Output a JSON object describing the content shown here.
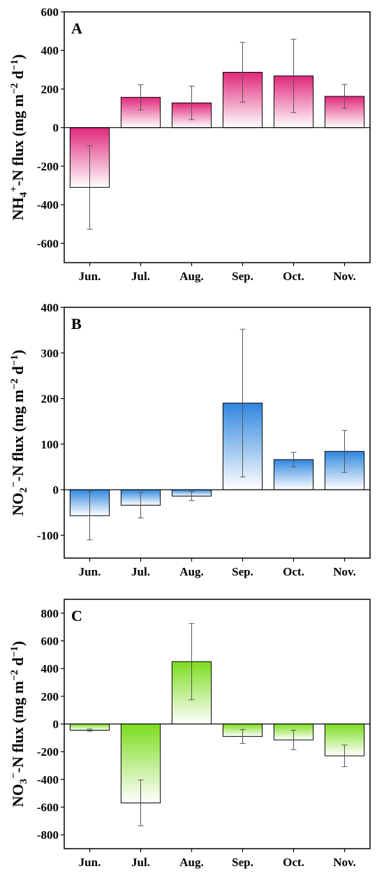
{
  "chart_data": [
    {
      "type": "bar",
      "panel_letter": "A",
      "categories": [
        "Jun.",
        "Jul.",
        "Aug.",
        "Sep.",
        "Oct.",
        "Nov."
      ],
      "values": [
        -310,
        157,
        128,
        287,
        268,
        162
      ],
      "errors": [
        217,
        65,
        87,
        155,
        190,
        62
      ],
      "ylim": [
        -700,
        600
      ],
      "yticks": [
        -600,
        -400,
        -200,
        0,
        200,
        400,
        600
      ],
      "ylabel": {
        "lead": "NH",
        "sub": "4",
        "sup": "+",
        "mid": "-N flux (mg m",
        "sup2": "−2",
        "tail": " d",
        "sup3": "−1",
        "end": ")"
      },
      "color": "#e0287a",
      "grid": false
    },
    {
      "type": "bar",
      "panel_letter": "B",
      "categories": [
        "Jun.",
        "Jul.",
        "Aug.",
        "Sep.",
        "Oct.",
        "Nov."
      ],
      "values": [
        -57,
        -34,
        -14,
        190,
        66,
        84
      ],
      "errors": [
        53,
        28,
        10,
        162,
        16,
        46
      ],
      "ylim": [
        -150,
        400
      ],
      "yticks": [
        -100,
        0,
        100,
        200,
        300,
        400
      ],
      "ylabel": {
        "lead": "NO",
        "sub": "2",
        "sup": "−",
        "mid": "-N flux (mg m",
        "sup2": "−2",
        "tail": " d",
        "sup3": "−1",
        "end": ")"
      },
      "color": "#2f86de",
      "grid": false
    },
    {
      "type": "bar",
      "panel_letter": "C",
      "categories": [
        "Jun.",
        "Jul.",
        "Aug.",
        "Sep.",
        "Oct.",
        "Nov."
      ],
      "values": [
        -45,
        -570,
        450,
        -90,
        -115,
        -230
      ],
      "errors": [
        8,
        165,
        275,
        50,
        70,
        78
      ],
      "ylim": [
        -900,
        900
      ],
      "yticks": [
        -800,
        -600,
        -400,
        -200,
        0,
        200,
        400,
        600,
        800
      ],
      "ylabel": {
        "lead": "NO",
        "sub": "3",
        "sup": "−",
        "mid": "-N flux (mg m",
        "sup2": "−2",
        "tail": " d",
        "sup3": "−1",
        "end": ")"
      },
      "color": "#7ddc1f",
      "grid": false
    }
  ]
}
